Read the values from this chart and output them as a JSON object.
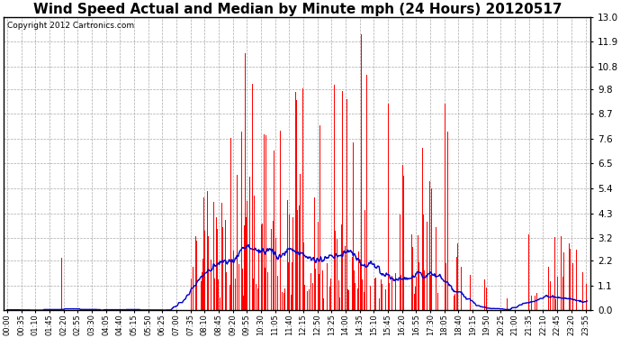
{
  "title": "Wind Speed Actual and Median by Minute mph (24 Hours) 20120517",
  "copyright": "Copyright 2012 Cartronics.com",
  "yticks": [
    0.0,
    1.1,
    2.2,
    3.2,
    4.3,
    5.4,
    6.5,
    7.6,
    8.7,
    9.8,
    10.8,
    11.9,
    13.0
  ],
  "ylim": [
    0.0,
    13.0
  ],
  "bar_color": "#ff0000",
  "line_color": "#0000cc",
  "bg_color": "#ffffff",
  "grid_color": "#aaaaaa",
  "title_fontsize": 11,
  "copyright_fontsize": 6.5,
  "figsize": [
    6.9,
    3.75
  ],
  "dpi": 100
}
